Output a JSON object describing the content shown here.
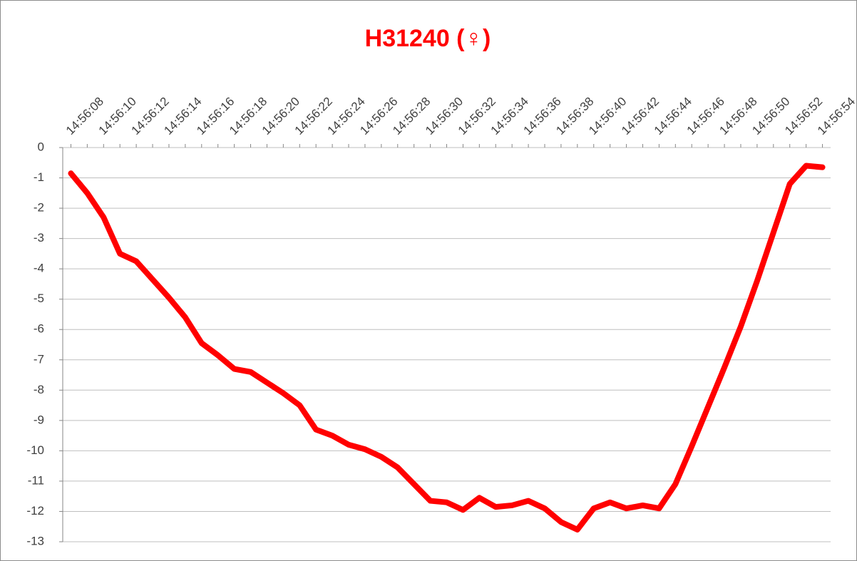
{
  "chart_data": {
    "type": "line",
    "title": "H31240 (♀)",
    "categories": [
      "14:56:08",
      null,
      "14:56:10",
      null,
      "14:56:12",
      null,
      "14:56:14",
      null,
      "14:56:16",
      null,
      "14:56:18",
      null,
      "14:56:20",
      null,
      "14:56:22",
      null,
      "14:56:24",
      null,
      "14:56:26",
      null,
      "14:56:28",
      null,
      "14:56:30",
      null,
      "14:56:32",
      null,
      "14:56:34",
      null,
      "14:56:36",
      null,
      "14:56:38",
      null,
      "14:56:40",
      null,
      "14:56:42",
      null,
      "14:56:44",
      null,
      "14:56:46",
      null,
      "14:56:48",
      null,
      "14:56:50",
      null,
      "14:56:52",
      null,
      "14:56:54"
    ],
    "values": [
      -0.85,
      -1.5,
      -2.3,
      -3.5,
      -3.75,
      -4.35,
      -4.95,
      -5.6,
      -6.45,
      -6.85,
      -7.3,
      -7.4,
      -7.75,
      -8.1,
      -8.5,
      -9.3,
      -9.5,
      -9.8,
      -9.95,
      -10.2,
      -10.55,
      -11.1,
      -11.65,
      -11.7,
      -11.95,
      -11.55,
      -11.85,
      -11.8,
      -11.65,
      -11.9,
      -12.35,
      -12.6,
      -11.9,
      -11.7,
      -11.9,
      -11.8,
      -11.9,
      -11.1,
      -9.85,
      -8.55,
      -7.25,
      -5.9,
      -4.4,
      -2.8,
      -1.2,
      -0.6,
      -0.65
    ],
    "color": "#ff0000",
    "ylim": [
      -13,
      0
    ],
    "yticks": [
      -13,
      -12,
      -11,
      -10,
      -9,
      -8,
      -7,
      -6,
      -5,
      -4,
      -3,
      -2,
      -1,
      0
    ],
    "grid": true
  }
}
